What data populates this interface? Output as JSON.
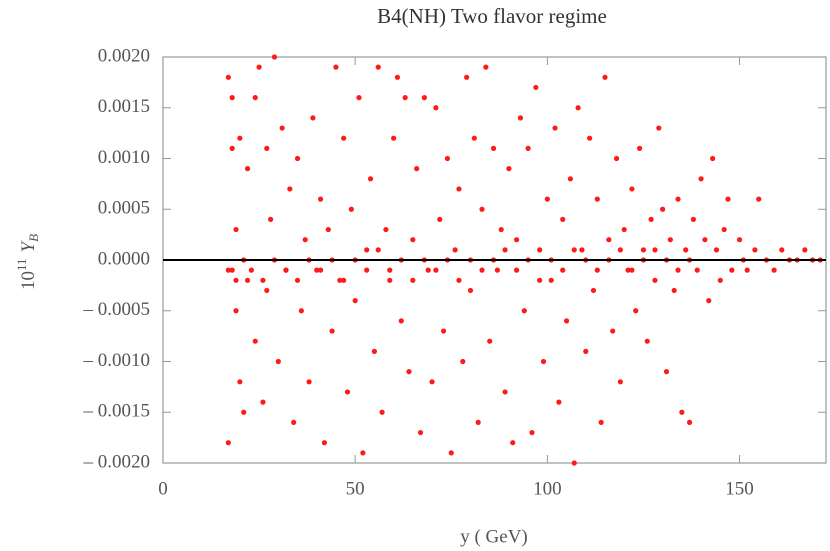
{
  "chart_data": {
    "type": "scatter",
    "title": "B4(NH) Two flavor regime",
    "xlabel": "y ( GeV)",
    "ylabel": {
      "base": "10",
      "exp": "11",
      "symbol": "Y",
      "sub": "B"
    },
    "xlim": [
      0,
      172.5
    ],
    "ylim": [
      -0.002,
      0.002
    ],
    "xticks": [
      0,
      50,
      100,
      150
    ],
    "yticks": [
      {
        "value": 0.002,
        "label": "0.0020"
      },
      {
        "value": 0.0015,
        "label": "0.0015"
      },
      {
        "value": 0.001,
        "label": "0.0010"
      },
      {
        "value": 0.0005,
        "label": "0.0005"
      },
      {
        "value": 0,
        "label": "0.0000"
      },
      {
        "value": -0.0005,
        "label": "– 0.0005"
      },
      {
        "value": -0.001,
        "label": "– 0.0010"
      },
      {
        "value": -0.0015,
        "label": "– 0.0015"
      },
      {
        "value": -0.002,
        "label": "– 0.0020"
      }
    ],
    "hline": 0,
    "series": [
      {
        "color": "#ff1a1a",
        "x": [
          17,
          17,
          18,
          18,
          18,
          19,
          19,
          20,
          20,
          21,
          22,
          22,
          24,
          24,
          25,
          26,
          27,
          27,
          28,
          29,
          30,
          31,
          32,
          33,
          34,
          35,
          36,
          37,
          38,
          39,
          40,
          41,
          42,
          43,
          44,
          45,
          46,
          47,
          48,
          49,
          50,
          51,
          52,
          53,
          54,
          55,
          56,
          57,
          58,
          59,
          60,
          61,
          62,
          63,
          64,
          65,
          66,
          67,
          68,
          69,
          70,
          71,
          72,
          73,
          74,
          75,
          76,
          77,
          78,
          79,
          80,
          81,
          82,
          83,
          84,
          85,
          86,
          87,
          88,
          89,
          90,
          91,
          92,
          93,
          94,
          95,
          96,
          97,
          98,
          99,
          100,
          101,
          102,
          103,
          104,
          105,
          106,
          107,
          108,
          109,
          110,
          111,
          112,
          113,
          114,
          115,
          116,
          117,
          118,
          119,
          120,
          121,
          122,
          123,
          124,
          125,
          126,
          127,
          128,
          129,
          130,
          131,
          132,
          133,
          134,
          135,
          136,
          137,
          138,
          139,
          140,
          141,
          142,
          143,
          144,
          145,
          146,
          147,
          148,
          150,
          151,
          152,
          154,
          155,
          157,
          159,
          161,
          163,
          165,
          167,
          169,
          171,
          17,
          19,
          21,
          23,
          26,
          29,
          32,
          35,
          38,
          41,
          44,
          47,
          50,
          53,
          56,
          59,
          62,
          65,
          68,
          71,
          74,
          77,
          80,
          83,
          86,
          89,
          92,
          95,
          98,
          101,
          104,
          107,
          110,
          113,
          116,
          119,
          122,
          125,
          128,
          131,
          134,
          137
        ],
        "values": [
          -0.0018,
          0.0018,
          0.0016,
          -0.0001,
          0.0011,
          -0.0005,
          0.0003,
          -0.0012,
          0.0012,
          -0.0015,
          0.0009,
          -0.0002,
          0.0016,
          -0.0008,
          0.0019,
          -0.0014,
          0.0011,
          -0.0003,
          0.0004,
          0.002,
          -0.001,
          0.0013,
          -0.0001,
          0.0007,
          -0.0016,
          0.001,
          -0.0005,
          0.0002,
          -0.0012,
          0.0014,
          -0.0001,
          0.0006,
          -0.0018,
          0.0003,
          -0.0007,
          0.0019,
          -0.0002,
          0.0012,
          -0.0013,
          0.0005,
          -0.0004,
          0.0016,
          -0.0019,
          0.0001,
          0.0008,
          -0.0009,
          0.0019,
          -0.0015,
          0.0003,
          -0.0002,
          0.0012,
          0.0018,
          -0.0006,
          0.0016,
          -0.0011,
          0.0002,
          0.0009,
          -0.0017,
          0.0016,
          -0.0001,
          -0.0012,
          0.0015,
          0.0004,
          -0.0007,
          0.001,
          -0.0019,
          0.0001,
          0.0007,
          -0.001,
          0.0018,
          -0.0003,
          0.0012,
          -0.0016,
          0.0005,
          0.0019,
          -0.0008,
          0.0011,
          -0.0001,
          0.0003,
          -0.0013,
          0.0009,
          -0.0018,
          0.0002,
          0.0014,
          -0.0005,
          0.0011,
          -0.0017,
          0.0017,
          0.0001,
          -0.001,
          0.0006,
          -0.0002,
          0.0013,
          -0.0014,
          0.0004,
          -0.0006,
          0.0008,
          -0.002,
          0.0015,
          0.0001,
          -0.0009,
          0.0012,
          -0.0003,
          0.0006,
          -0.0016,
          0.0018,
          0.0002,
          -0.0007,
          0.001,
          -0.0012,
          0.0003,
          -0.0001,
          0.0007,
          -0.0005,
          0.0011,
          0.0001,
          -0.0008,
          0.0004,
          -0.0002,
          0.0013,
          0.0005,
          -0.0011,
          0.0002,
          -0.0003,
          0.0006,
          -0.0015,
          0.0001,
          -0.0016,
          0.0004,
          -0.0001,
          0.0008,
          0.0002,
          -0.0004,
          0.001,
          0.0001,
          -0.0002,
          0.0003,
          0.0006,
          -0.0001,
          0.0002,
          0,
          -0.0001,
          0.0001,
          0.0006,
          0,
          -0.0001,
          0.0001,
          0,
          0,
          0.0001,
          0,
          0,
          -0.0001,
          -0.0002,
          0,
          -0.0001,
          -0.0002,
          0,
          -0.0001,
          -0.0002,
          0,
          -0.0001,
          0,
          -0.0002,
          0,
          -0.0001,
          0.0001,
          -0.0001,
          0,
          -0.0002,
          0,
          -0.0001,
          0,
          -0.0002,
          0,
          -0.0001,
          0,
          0.0001,
          -0.0001,
          0,
          -0.0002,
          0,
          -0.0001,
          0.0001,
          0,
          -0.0001,
          0,
          0.0001,
          -0.0001,
          0,
          0.0001,
          0,
          -0.0001,
          0
        ]
      }
    ]
  }
}
